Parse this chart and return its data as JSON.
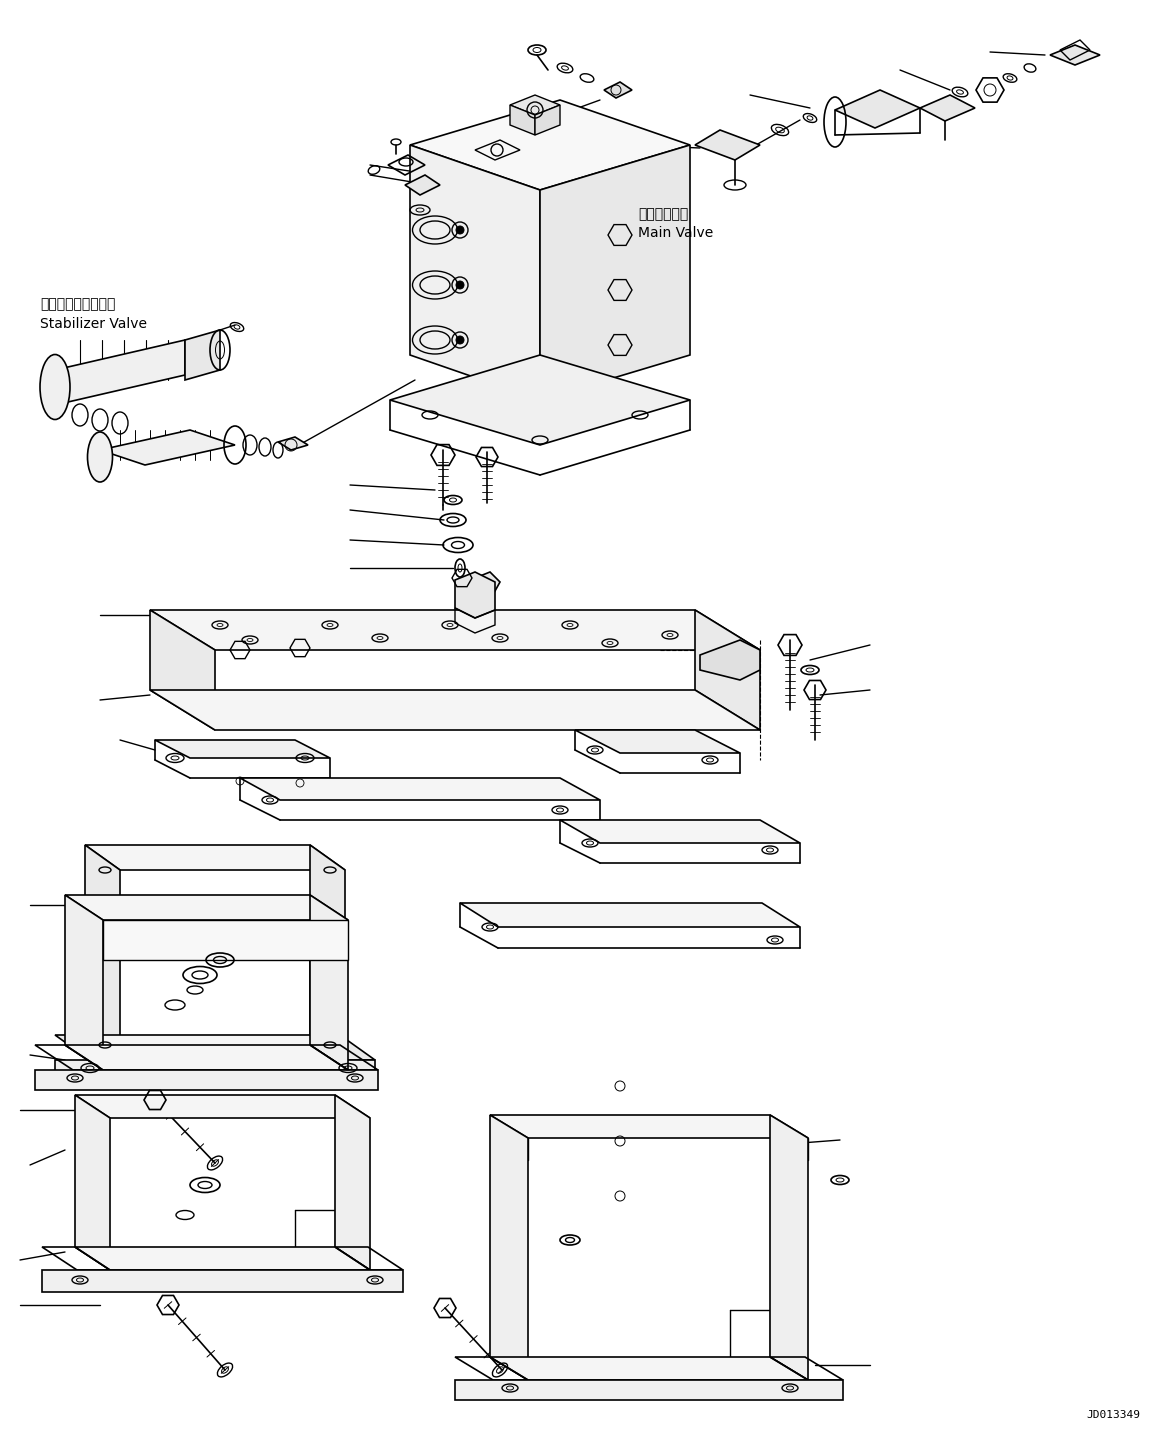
{
  "bg_color": "#ffffff",
  "line_color": "#000000",
  "fig_width": 11.63,
  "fig_height": 14.31,
  "dpi": 100,
  "watermark": "JD013349",
  "label_stabilizer_jp": "スタビライザバルブ",
  "label_stabilizer_en": "Stabilizer Valve",
  "label_main_jp": "メインバルブ",
  "label_main_en": "Main Valve"
}
